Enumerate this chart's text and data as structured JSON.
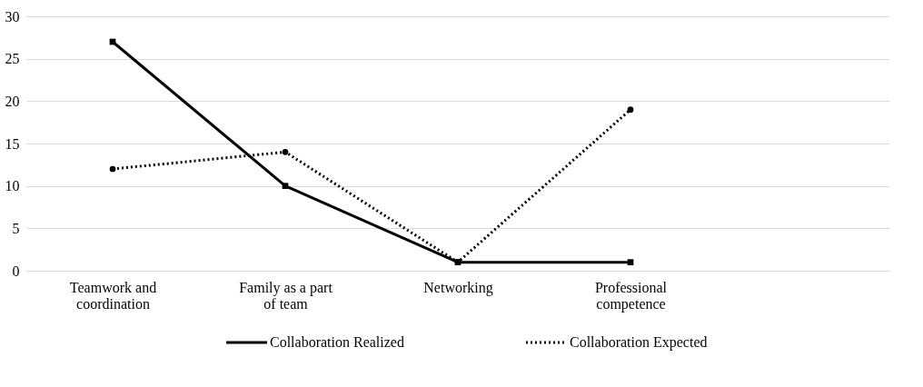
{
  "chart_data": {
    "type": "line",
    "categories": [
      "Teamwork and coordination",
      "Family as a part of team",
      "Networking",
      "Professional competence",
      null
    ],
    "series": [
      {
        "name": "Collaboration Realized",
        "color": "#000000",
        "line_style": "solid",
        "marker": "square",
        "values": [
          27,
          10,
          1,
          1,
          null
        ]
      },
      {
        "name": "Collaboration Expected",
        "color": "#000000",
        "line_style": "dotted",
        "marker": "circle",
        "values": [
          12,
          14,
          1,
          19,
          null
        ]
      }
    ],
    "ylim": [
      0,
      30
    ],
    "yticks": [
      0,
      5,
      10,
      15,
      20,
      25,
      30
    ],
    "grid": "y",
    "legend": "bottom"
  }
}
